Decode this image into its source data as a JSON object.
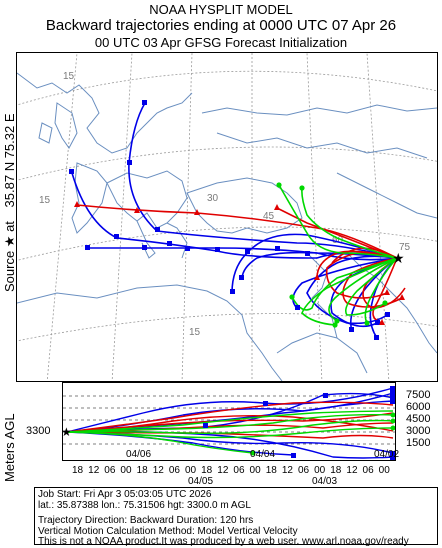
{
  "header": {
    "line1": "NOAA HYSPLIT MODEL",
    "line2": "Backward trajectories ending at 0000 UTC 07 Apr 26",
    "line3": "00 UTC 03 Apr    GFSG  Forecast Initialization"
  },
  "map": {
    "side_label_prefix": "Source ★ at",
    "side_label_coords": "35.87 N   75.32 E",
    "latitude_labels": [
      "15",
      "15",
      "30",
      "45",
      "60",
      "75",
      "15"
    ],
    "source": {
      "lat": 35.87,
      "lon": 75.32
    }
  },
  "height_panel": {
    "ylabel": "Meters AGL",
    "start_height_label": "3300",
    "y_ticks": [
      "7500",
      "6000",
      "4500",
      "3000",
      "1500"
    ],
    "hour_ticks": [
      "18",
      "12",
      "06",
      "00",
      "18",
      "12",
      "06",
      "00",
      "18",
      "12",
      "06",
      "00",
      "18",
      "12",
      "06",
      "00",
      "18",
      "12",
      "06",
      "00"
    ],
    "date_labels_top": [
      "04/06",
      "04/04",
      "04/02"
    ],
    "date_labels_bottom": [
      "04/05",
      "04/03"
    ]
  },
  "job": {
    "line1": "Job Start: Fri Apr  3 05:03:05 UTC 2026",
    "line2": "lat.: 35.87388   lon.: 75.31506   hgt: 3300.0 m AGL",
    "line3": "Trajectory Direction: Backward       Duration: 120 hrs",
    "line4": "Vertical Motion Calculation Method: Model Vertical Velocity",
    "line5": "This is not a NOAA product.It was produced by a web user. www.arl.noaa.gov/ready"
  },
  "colors": {
    "red": "#e00000",
    "blue": "#0000e8",
    "green": "#00d800",
    "coast": "#6a8fc0",
    "grid": "#9a9a9a"
  }
}
